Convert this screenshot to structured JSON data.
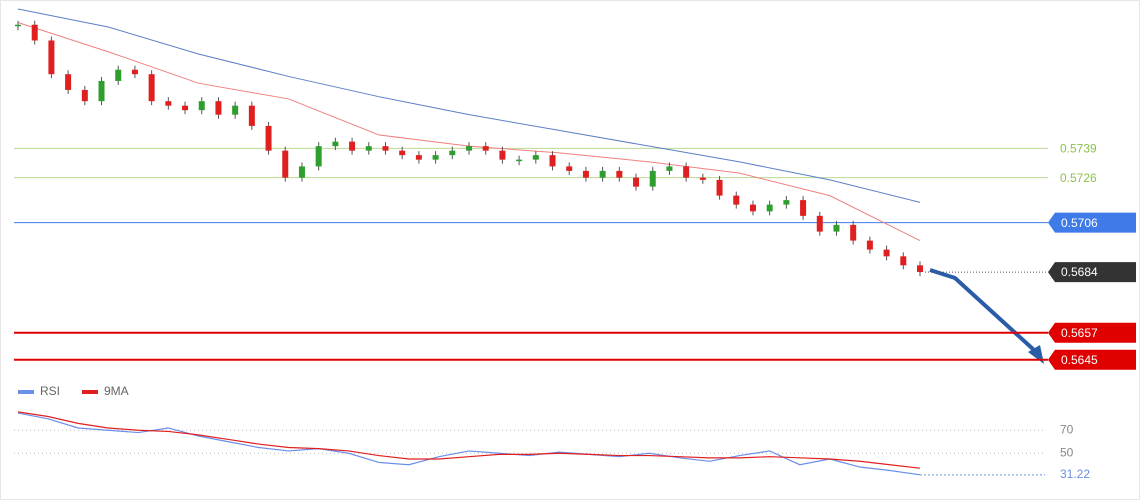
{
  "chart_data": {
    "type": "candlestick",
    "ylim": [
      0.5636,
      0.5805
    ],
    "closes": [
      0.5794,
      0.5787,
      0.5772,
      0.5765,
      0.576,
      0.5769,
      0.5774,
      0.5772,
      0.576,
      0.5758,
      0.5756,
      0.576,
      0.5754,
      0.5758,
      0.5749,
      0.5738,
      0.5726,
      0.5731,
      0.574,
      0.5742,
      0.5738,
      0.574,
      0.5738,
      0.5736,
      0.5734,
      0.5736,
      0.5738,
      0.574,
      0.5738,
      0.5734,
      0.5734,
      0.5736,
      0.5731,
      0.5729,
      0.5726,
      0.5729,
      0.5726,
      0.5722,
      0.5729,
      0.5731,
      0.5726,
      0.5725,
      0.5718,
      0.5714,
      0.5711,
      0.5714,
      0.5716,
      0.5709,
      0.5702,
      0.5705,
      0.5698,
      0.5694,
      0.5691,
      0.5687,
      0.5684
    ],
    "up_color": "#2e9e2e",
    "down_color": "#e02020",
    "ma": {
      "color": "#5b7fc7",
      "values": [
        0.5801,
        0.5793,
        0.5781,
        0.5771,
        0.5762,
        0.5754,
        0.5747,
        0.574,
        0.5733,
        0.5725,
        0.5715
      ]
    },
    "fast_ma": {
      "color": "#f08080",
      "values": [
        0.5795,
        0.5782,
        0.5768,
        0.5761,
        0.5745,
        0.574,
        0.5737,
        0.5733,
        0.5728,
        0.5718,
        0.5698
      ]
    },
    "levels": [
      {
        "value": 0.5739,
        "color": "#8bc34a",
        "boxed": false
      },
      {
        "value": 0.5726,
        "color": "#8bc34a",
        "boxed": false
      },
      {
        "value": 0.5706,
        "color": "#3f7be8",
        "boxed": true
      },
      {
        "value": 0.5684,
        "color": "#333333",
        "boxed": true
      },
      {
        "value": 0.5657,
        "color": "#e00000",
        "boxed": true
      },
      {
        "value": 0.5645,
        "color": "#e00000",
        "boxed": true
      }
    ],
    "rsi": {
      "ylim": [
        18,
        92
      ],
      "yticks": [
        70,
        50
      ],
      "series": [
        {
          "name": "RSI",
          "color": "#6b8ee8",
          "values": [
            85,
            80,
            72,
            70,
            68,
            72,
            65,
            60,
            55,
            52,
            54,
            50,
            42,
            40,
            47,
            52,
            50,
            48,
            51,
            49,
            47,
            50,
            46,
            43,
            48,
            52,
            40,
            45,
            38,
            35,
            31.22
          ]
        },
        {
          "name": "9MA",
          "color": "#e02020",
          "values": [
            86,
            82,
            76,
            72,
            70,
            69,
            66,
            62,
            58,
            55,
            54,
            52,
            48,
            45,
            45,
            47,
            49,
            49,
            50,
            49,
            48,
            48,
            47,
            46,
            46,
            47,
            46,
            45,
            43,
            40,
            37
          ]
        }
      ],
      "last_label": 31.22
    }
  }
}
